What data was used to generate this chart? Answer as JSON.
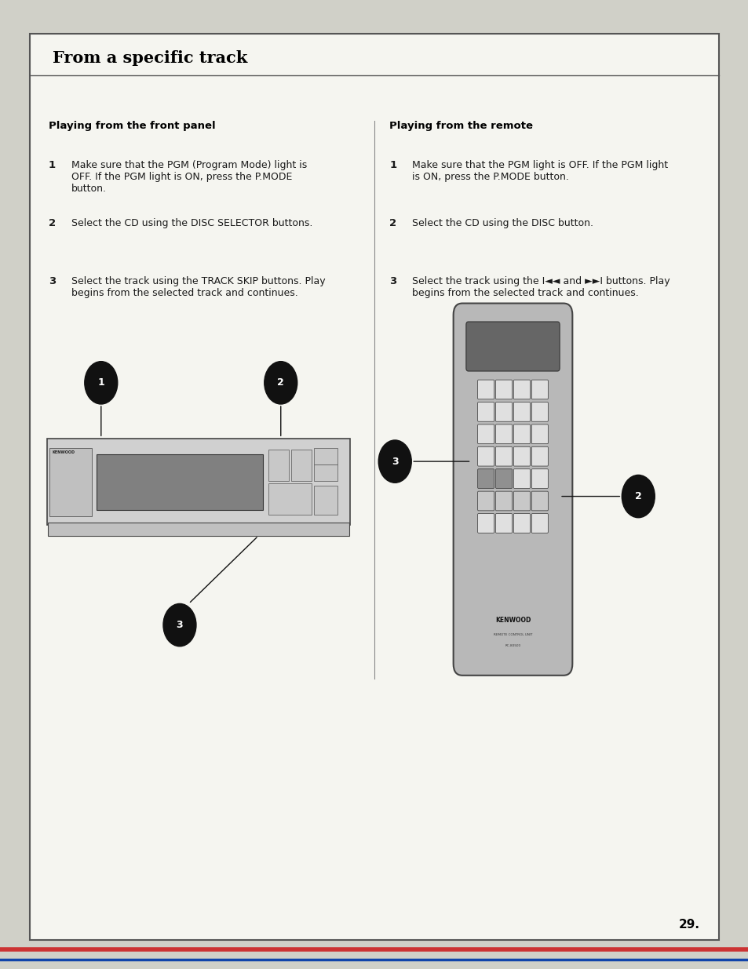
{
  "title": "From a specific track",
  "page_number": "29.",
  "left_section_title": "Playing from the front panel",
  "right_section_title": "Playing from the remote",
  "left_steps": [
    [
      "1",
      "Make sure that the PGM (Program Mode) light is\nOFF. If the PGM light is ON, press the P.MODE\nbutton."
    ],
    [
      "2",
      "Select the CD using the DISC SELECTOR buttons."
    ],
    [
      "3",
      "Select the track using the TRACK SKIP buttons. Play\nbegins from the selected track and continues."
    ]
  ],
  "right_steps": [
    [
      "1",
      "Make sure that the PGM light is OFF. If the PGM light\nis ON, press the P.MODE button."
    ],
    [
      "2",
      "Select the CD using the DISC button."
    ],
    [
      "3",
      "Select the track using the I◄◄ and ►►I buttons. Play\nbegins from the selected track and continues."
    ]
  ],
  "bg_color": "#f5f5f0",
  "page_bg": "#d0d0c8",
  "text_color": "#1a1a1a",
  "title_color": "#000000",
  "bullet_bg": "#111111",
  "bullet_text": "#ffffff",
  "divider_color": "#888888"
}
